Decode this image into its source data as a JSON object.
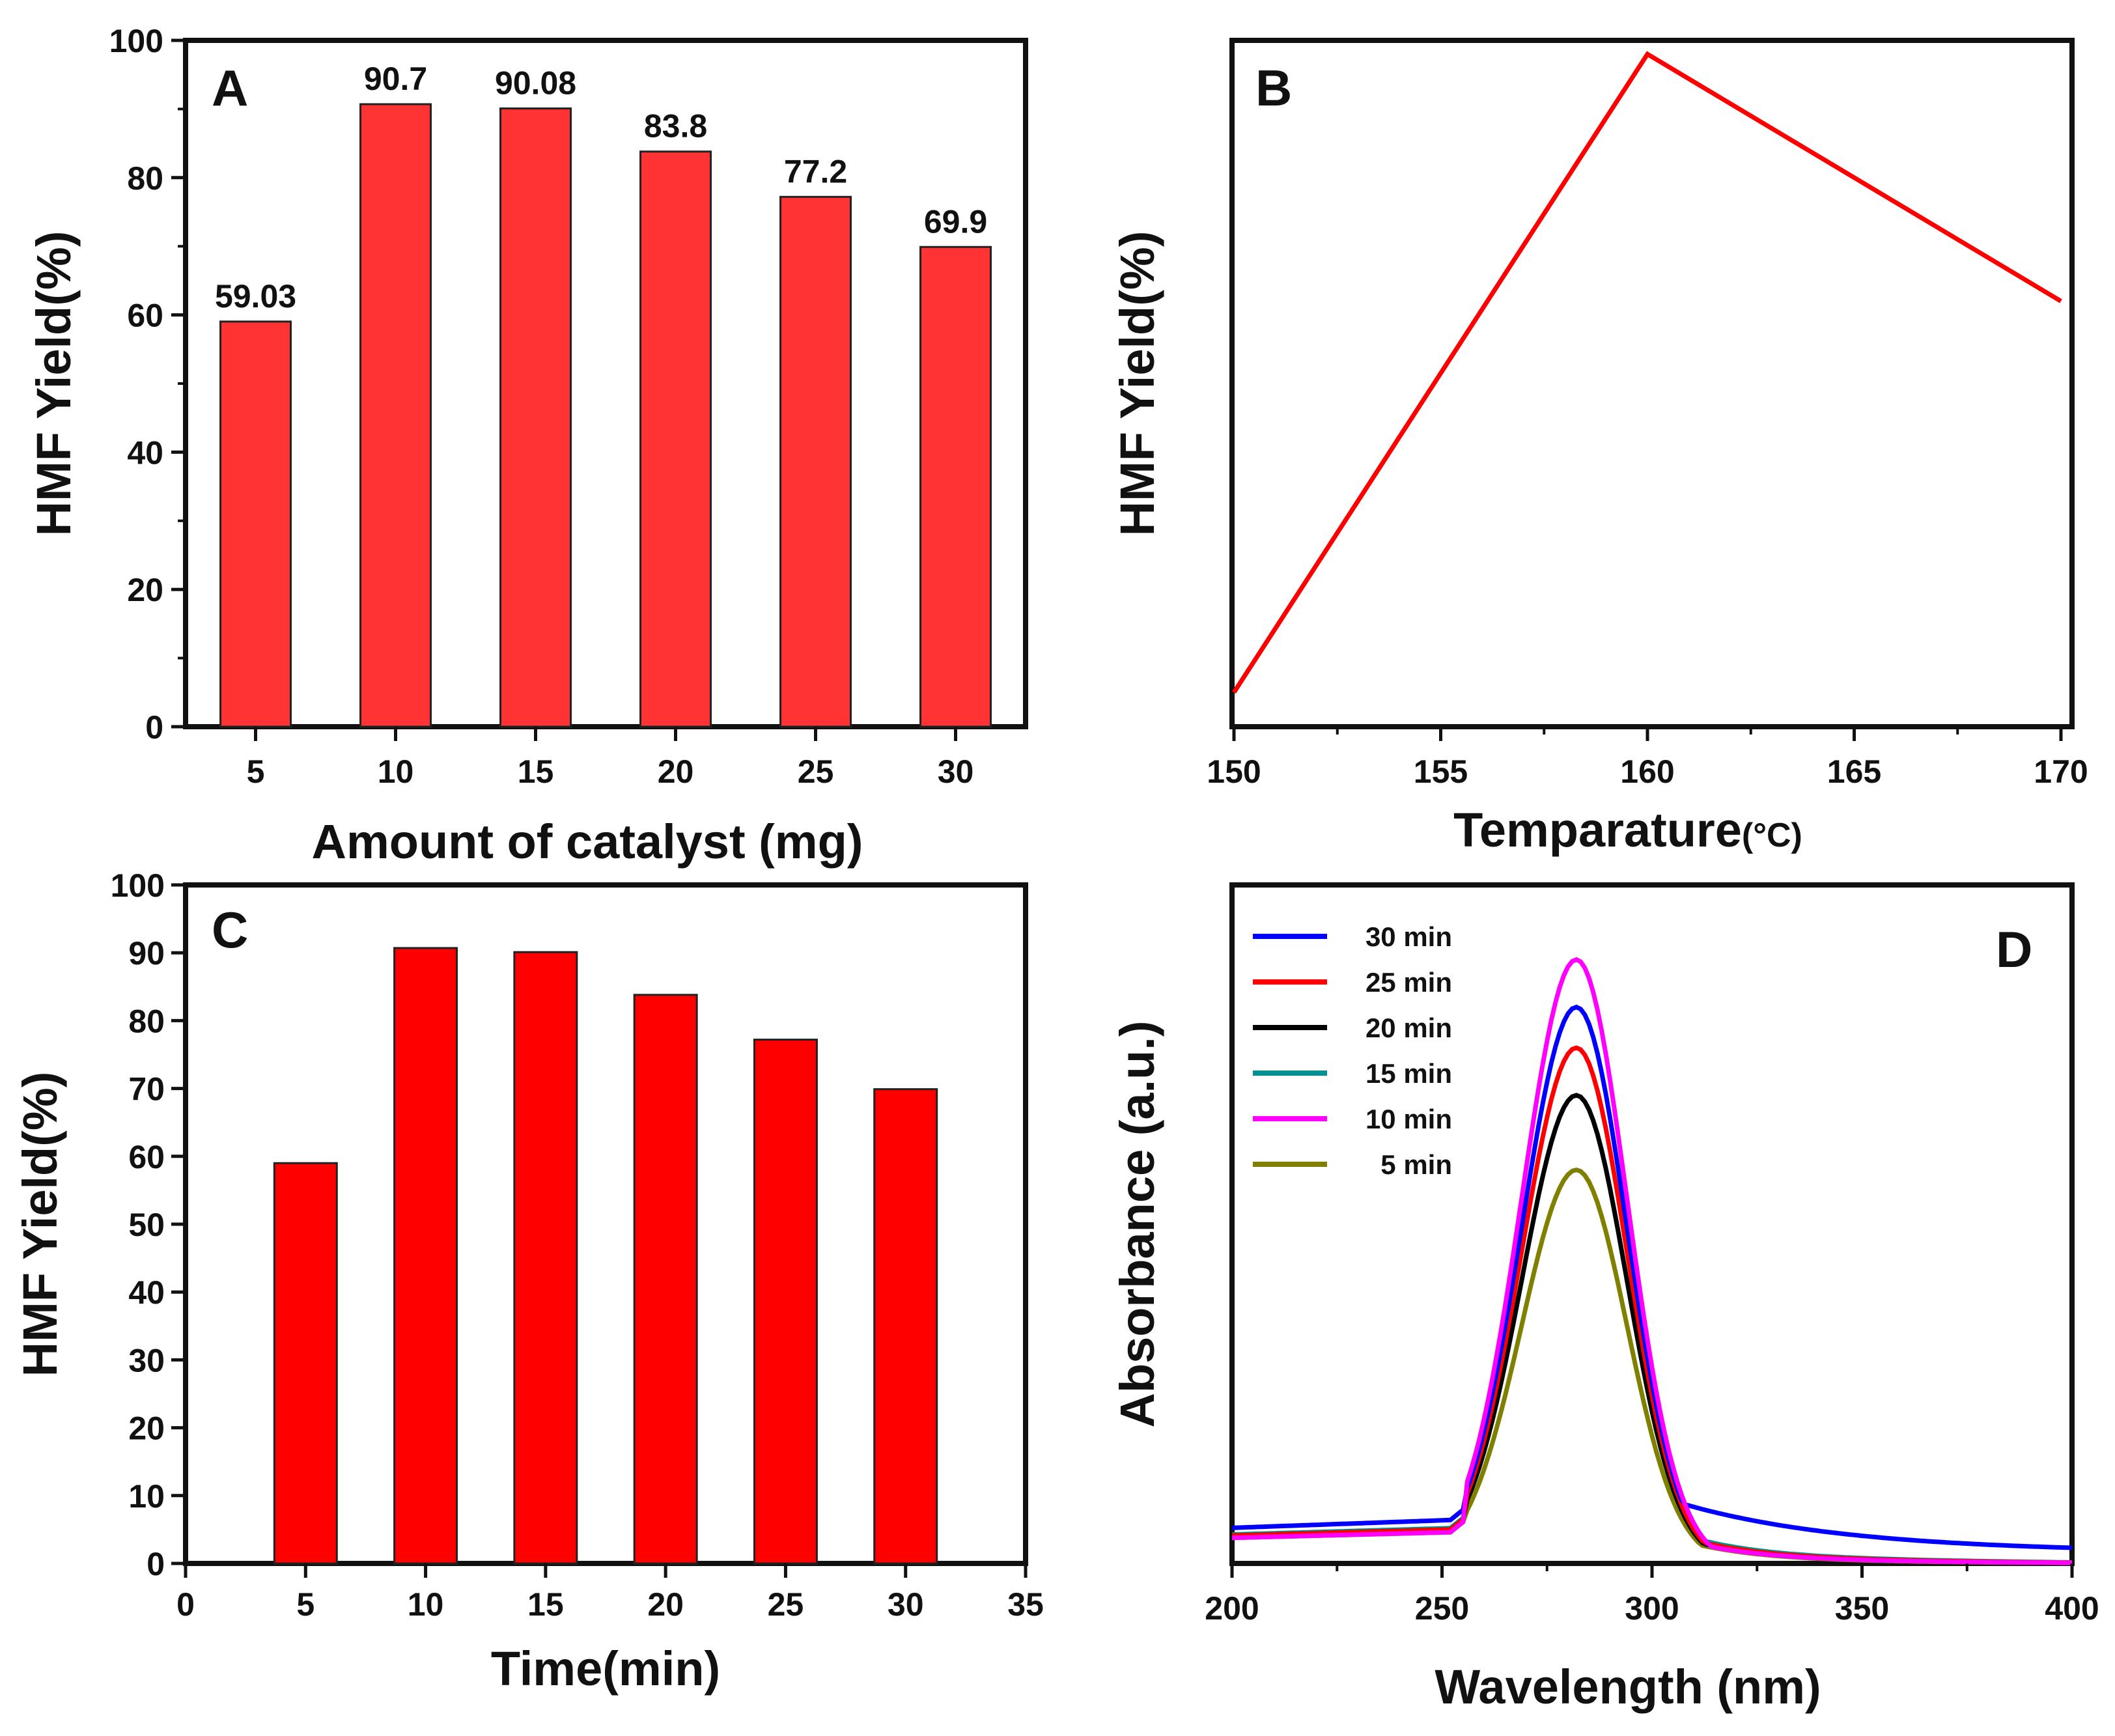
{
  "colors": {
    "bar_a": "#ff3333",
    "bar_c": "#ff0000",
    "line_b": "#ff0000",
    "axis": "#111111"
  },
  "chart_data": [
    {
      "id": "A",
      "panel_label": "A",
      "type": "bar",
      "xlabel": "Amount of catalyst (mg)",
      "ylabel": "HMF Yield(%)",
      "categories": [
        "5",
        "10",
        "15",
        "20",
        "25",
        "30"
      ],
      "values": [
        59.03,
        90.7,
        90.08,
        83.8,
        77.2,
        69.9
      ],
      "data_labels": [
        "59.03",
        "90.7",
        "90.08",
        "83.8",
        "77.2",
        "69.9"
      ],
      "ylim": [
        0,
        100
      ],
      "yticks": [
        0,
        20,
        40,
        60,
        80,
        100
      ],
      "ytick_labels": [
        "0",
        "20",
        "40",
        "60",
        "80",
        "100"
      ]
    },
    {
      "id": "B",
      "panel_label": "B",
      "type": "line",
      "xlabel_main": "Temparature",
      "xlabel_unit": "(°C)",
      "ylabel": "HMF Yield(%)",
      "x": [
        150,
        160,
        170
      ],
      "y": [
        5,
        98,
        62
      ],
      "xlim": [
        150,
        170
      ],
      "ylim": [
        0,
        100
      ],
      "xticks": [
        150,
        155,
        160,
        165,
        170
      ],
      "xtick_labels": [
        "150",
        "155",
        "160",
        "165",
        "170"
      ],
      "y_tick_labels_shown": false
    },
    {
      "id": "C",
      "panel_label": "C",
      "type": "bar",
      "xlabel": "Time(min)",
      "ylabel": "HMF Yield(%)",
      "x": [
        5,
        10,
        15,
        20,
        25,
        30
      ],
      "values": [
        59,
        90.7,
        90.1,
        83.8,
        77.2,
        69.9
      ],
      "xlim": [
        0,
        35
      ],
      "ylim": [
        0,
        100
      ],
      "xticks": [
        0,
        5,
        10,
        15,
        20,
        25,
        30,
        35
      ],
      "xtick_labels": [
        "0",
        "5",
        "10",
        "15",
        "20",
        "25",
        "30",
        "35"
      ],
      "yticks": [
        0,
        10,
        20,
        30,
        40,
        50,
        60,
        70,
        80,
        90,
        100
      ],
      "ytick_labels": [
        "0",
        "10",
        "20",
        "30",
        "40",
        "50",
        "60",
        "70",
        "80",
        "90",
        "100"
      ]
    },
    {
      "id": "D",
      "panel_label": "D",
      "type": "line",
      "xlabel": "Wavelength (nm)",
      "ylabel": "Absorbance (a.u.)",
      "xlim": [
        200,
        400
      ],
      "ylim": [
        0,
        1
      ],
      "xticks": [
        200,
        250,
        300,
        350,
        400
      ],
      "xtick_labels": [
        "200",
        "250",
        "300",
        "350",
        "400"
      ],
      "y_tick_labels_shown": false,
      "legend_position": "top-left",
      "series": [
        {
          "name": "30 min",
          "color": "#0000ff",
          "peak_x": 282,
          "peak": 0.82,
          "left": 0.064,
          "tail": 0.016,
          "tail_drop_x": 330
        },
        {
          "name": "25 min",
          "color": "#ff0000",
          "peak_x": 282,
          "peak": 0.76,
          "left": 0.05,
          "tail": 0.006,
          "tail_drop_x": 315
        },
        {
          "name": "20 min",
          "color": "#000000",
          "peak_x": 282,
          "peak": 0.69,
          "left": 0.05,
          "tail": 0.004,
          "tail_drop_x": 315
        },
        {
          "name": "15 min",
          "color": "#009090",
          "peak_x": 282,
          "peak": 0.69,
          "left": 0.052,
          "tail": 0.008,
          "tail_drop_x": 320
        },
        {
          "name": "10 min",
          "color": "#ff00ff",
          "peak_x": 282,
          "peak": 0.89,
          "left": 0.046,
          "tail": 0.004,
          "tail_drop_x": 315
        },
        {
          "name": "5 min",
          "color": "#808000",
          "peak_x": 282,
          "peak": 0.58,
          "left": 0.046,
          "tail": 0.003,
          "tail_drop_x": 312
        }
      ]
    }
  ]
}
